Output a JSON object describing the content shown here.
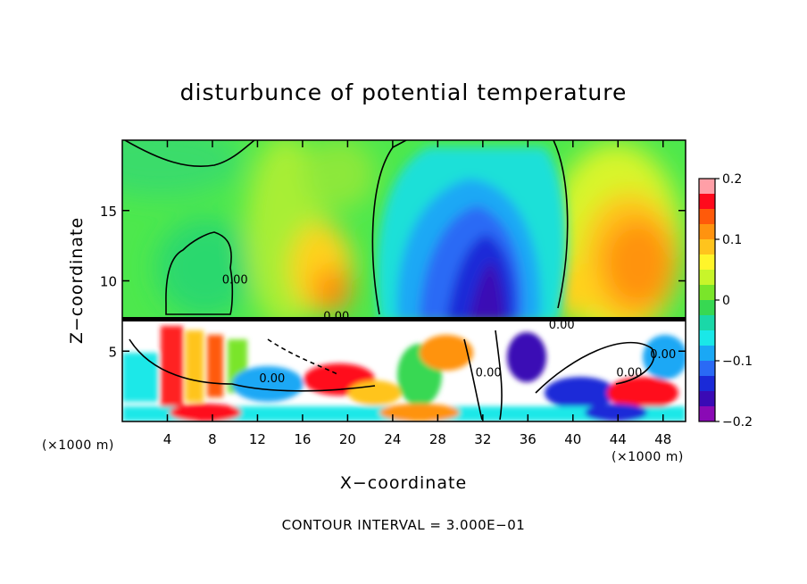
{
  "chart_data": {
    "type": "heatmap",
    "title": "disturbunce of potential temperature",
    "xlabel": "X−coordinate",
    "ylabel": "Z−coordinate",
    "x_unit_left": "(×1000 m)",
    "x_unit_right": "(×1000 m)",
    "footer": "CONTOUR INTERVAL = 3.000E−01",
    "xlim": [
      0,
      50
    ],
    "ylim": [
      0,
      20
    ],
    "x_ticks": [
      4,
      8,
      12,
      16,
      20,
      24,
      28,
      32,
      36,
      40,
      44,
      48
    ],
    "y_ticks": [
      5,
      10,
      15
    ],
    "colorbar": {
      "min": -0.2,
      "max": 0.2,
      "ticks": [
        "0.2",
        "0.1",
        "0",
        "−0.1",
        "−0.2"
      ],
      "colors": [
        "#ff9fa7",
        "#ff0a1c",
        "#ff5a0a",
        "#ff930f",
        "#ffc41d",
        "#fff52a",
        "#c8f52a",
        "#7ae52a",
        "#37d852",
        "#1ad8a8",
        "#1ae8e8",
        "#1aa8f5",
        "#2a6af5",
        "#1a2ad8",
        "#3a0ab5",
        "#8a0ab5"
      ]
    },
    "contour_labels": [
      {
        "text": "0.00",
        "x": 19,
        "z": 7.2
      },
      {
        "text": "0.00",
        "x": 10,
        "z": 9.8
      },
      {
        "text": "0.00",
        "x": 13.3,
        "z": 2.8
      },
      {
        "text": "0.00",
        "x": 32.5,
        "z": 3.2
      },
      {
        "text": "0.00",
        "x": 45,
        "z": 3.2
      },
      {
        "text": "0.00",
        "x": 48,
        "z": 4.5
      },
      {
        "text": "0.00",
        "x": 39,
        "z": 6.6
      }
    ]
  }
}
